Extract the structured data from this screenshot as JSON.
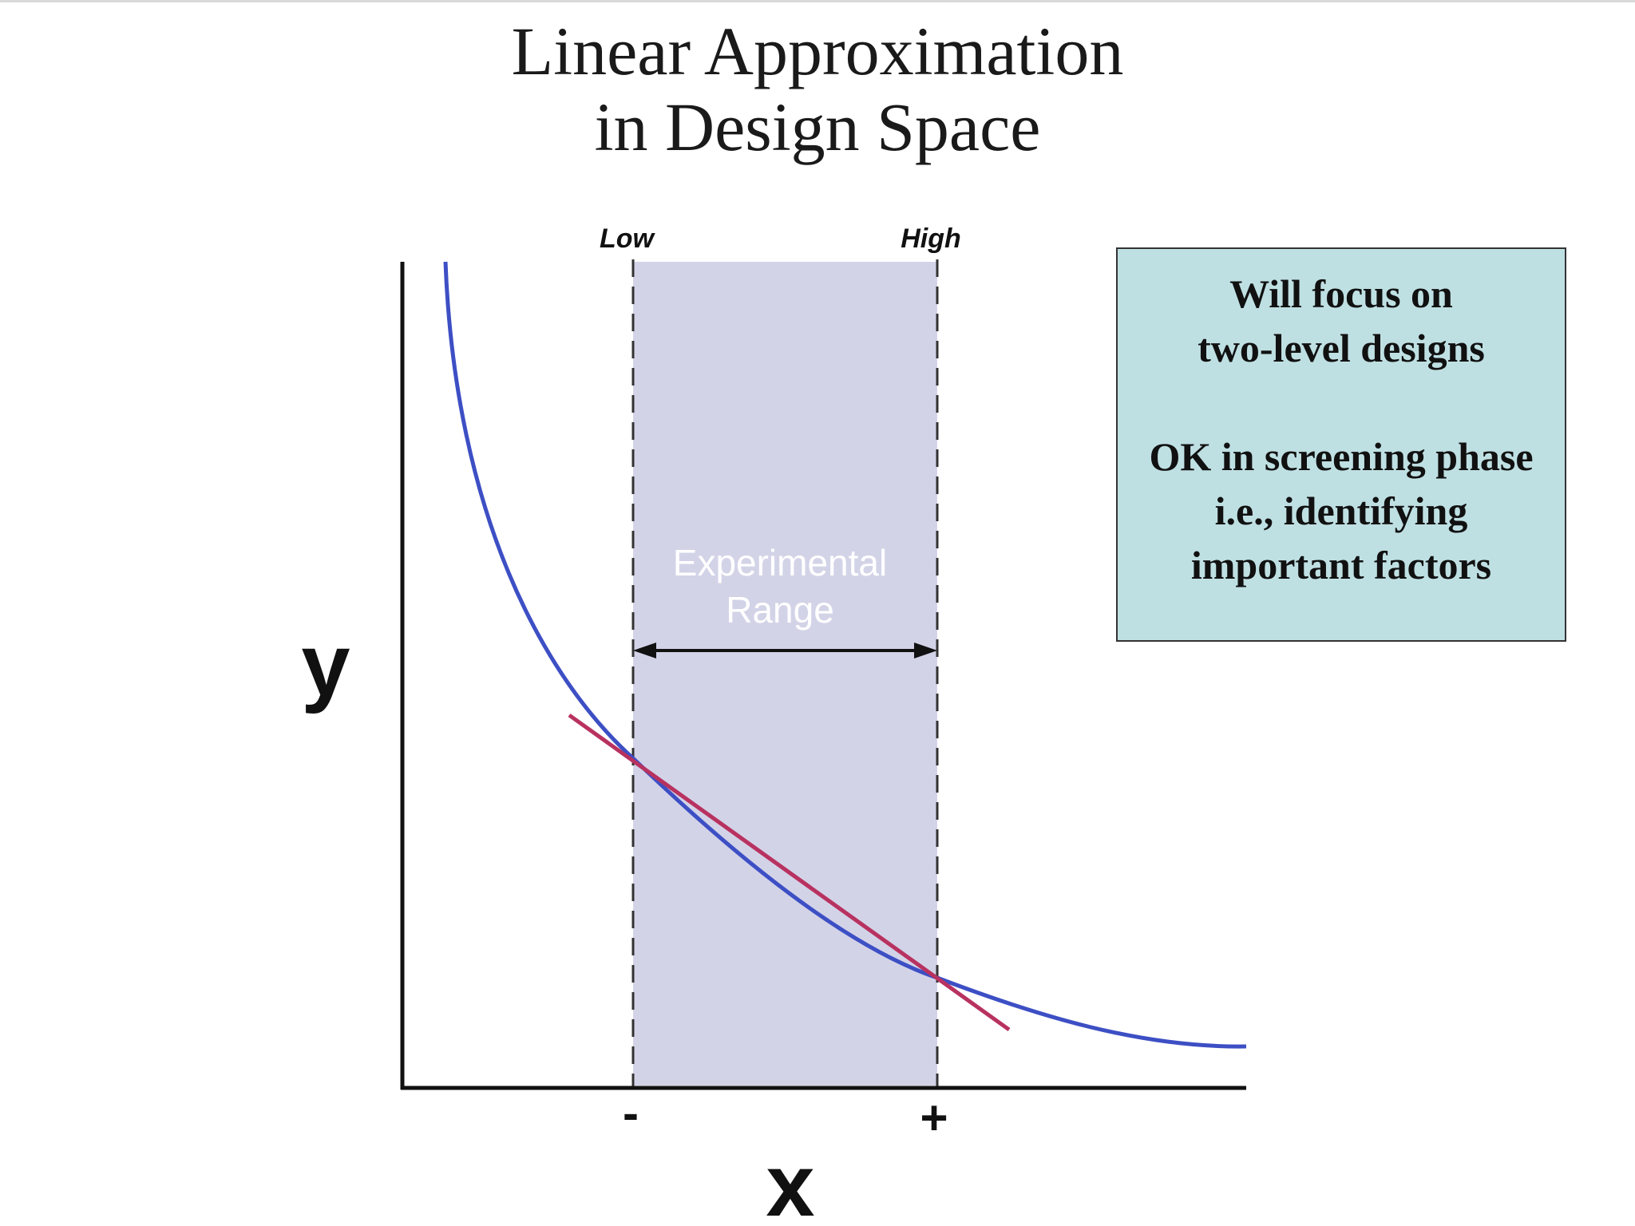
{
  "title": {
    "line1": "Linear Approximation",
    "line2": "in Design Space"
  },
  "diagram": {
    "low_label": "Low",
    "high_label": "High",
    "y_axis_label": "y",
    "x_axis_label": "x",
    "minus_label": "-",
    "plus_label": "+",
    "range_label_line1": "Experimental",
    "range_label_line2": "Range",
    "colors": {
      "curve": "#3d4fc4",
      "linear_fit": "#b83260",
      "range_fill": "#d3d3e8",
      "axis": "#111111",
      "dashed_line": "#333333",
      "range_label": "#ffffff"
    }
  },
  "note": {
    "line1": "Will focus on",
    "line2": "two-level designs",
    "line3": "OK in screening phase",
    "line4": "i.e., identifying",
    "line5": "important factors",
    "background": "#bfe0e3"
  }
}
